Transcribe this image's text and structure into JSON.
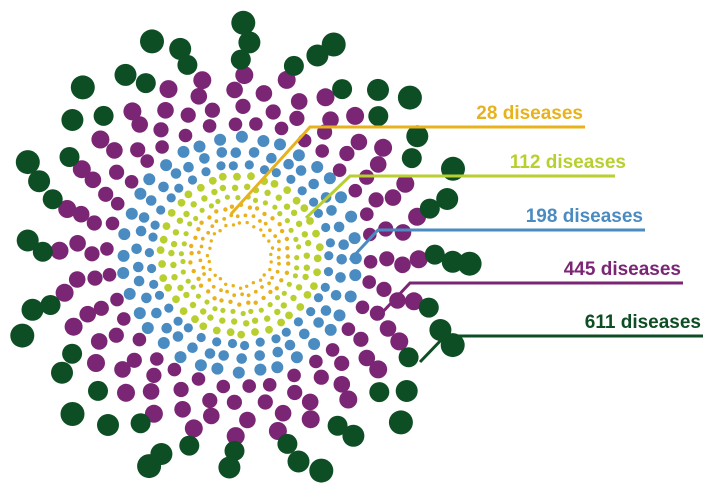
{
  "layers": [
    {
      "key": "yellow",
      "label": "28 diseases",
      "color": "#E8B21D",
      "count": 28
    },
    {
      "key": "lime",
      "label": "112 diseases",
      "color": "#B9CF2F",
      "count": 112
    },
    {
      "key": "blue",
      "label": "198 diseases",
      "color": "#4A8BC1",
      "count": 198
    },
    {
      "key": "purple",
      "label": "445 diseases",
      "color": "#7B2675",
      "count": 445
    },
    {
      "key": "green",
      "label": "611 diseases",
      "color": "#0E4E25",
      "count": 611
    }
  ]
}
